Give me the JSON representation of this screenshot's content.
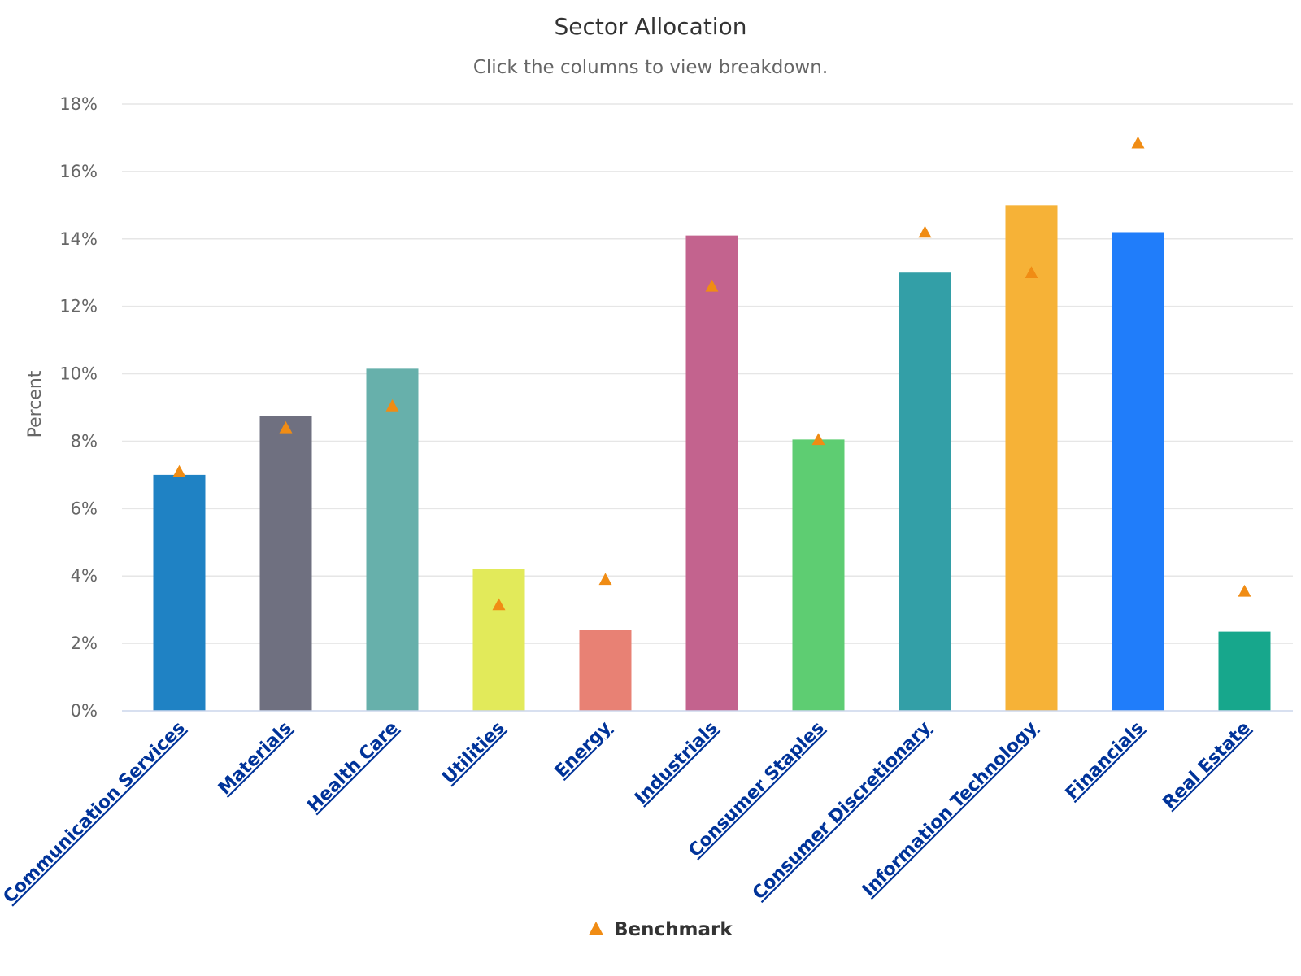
{
  "chart_data": {
    "type": "bar",
    "title": "Sector Allocation",
    "subtitle": "Click the columns to view breakdown.",
    "ylabel": "Percent",
    "xlabel": "",
    "ylim": [
      0,
      18
    ],
    "y_ticks": [
      "0%",
      "2%",
      "4%",
      "6%",
      "8%",
      "10%",
      "12%",
      "14%",
      "16%",
      "18%"
    ],
    "y_tick_values": [
      0,
      2,
      4,
      6,
      8,
      10,
      12,
      14,
      16,
      18
    ],
    "grid": true,
    "legend_position": "bottom-center",
    "categories": [
      "Communication Services",
      "Materials",
      "Health Care",
      "Utilities",
      "Energy",
      "Industrials",
      "Consumer Staples",
      "Consumer Discretionary",
      "Information Technology",
      "Financials",
      "Real Estate"
    ],
    "values": [
      7.0,
      8.75,
      10.15,
      4.2,
      2.4,
      14.1,
      8.05,
      13.0,
      15.0,
      14.2,
      2.35
    ],
    "bar_colors": [
      "#1f82c4",
      "#6f7080",
      "#67b0ab",
      "#e2ea5a",
      "#e88174",
      "#c3638e",
      "#5ecd72",
      "#339fa7",
      "#f6b237",
      "#207dfa",
      "#17a78c"
    ],
    "series": [
      {
        "name": "Benchmark",
        "marker": "triangle",
        "color": "#f08c14",
        "values": [
          7.1,
          8.4,
          9.05,
          3.15,
          3.9,
          12.6,
          8.05,
          14.2,
          13.0,
          16.85,
          3.55
        ]
      }
    ],
    "legend": [
      {
        "label": "Benchmark",
        "marker": "triangle",
        "color": "#f08c14"
      }
    ]
  }
}
